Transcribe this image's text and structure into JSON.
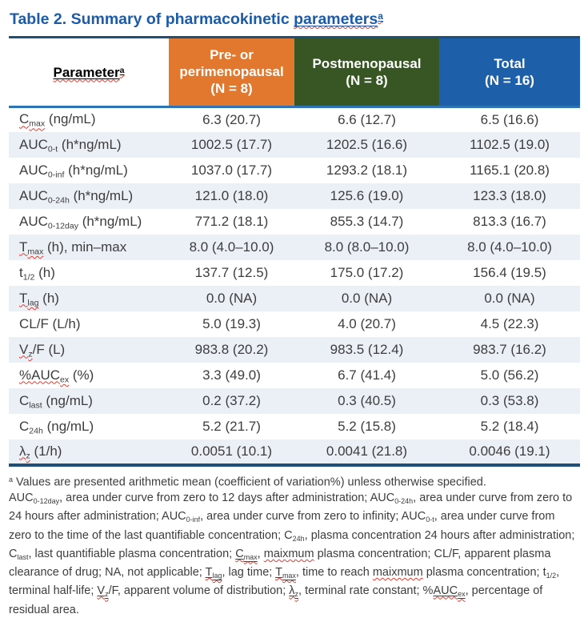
{
  "colors": {
    "title": "#1C5BA8",
    "border_dark": "#1F4E79",
    "border_mid": "#2E74B5",
    "stripe": "#EAF0F6",
    "squiggle": "#E03C31",
    "text": "#3D3D3D"
  },
  "title": {
    "segments": [
      {
        "t": "Table 2. Summary of pharmacokinetic "
      },
      {
        "t": "parameters",
        "u": true,
        "w": true
      },
      {
        "t": "a",
        "sup": true,
        "u": true,
        "w": true
      }
    ]
  },
  "table": {
    "header": {
      "param": [
        {
          "t": "Parameter",
          "u": true,
          "w": true
        },
        {
          "t": "a",
          "sup": true,
          "u": true,
          "w": true
        }
      ],
      "cols": [
        {
          "label": "Pre- or\nperimenopausal\n(N = 8)",
          "color": "#E2772E"
        },
        {
          "label": "Postmenopausal\n(N = 8)",
          "color": "#375623"
        },
        {
          "label": "Total\n(N = 16)",
          "color": "#1E5FA9"
        }
      ]
    },
    "rows": [
      {
        "label": [
          {
            "t": "C",
            "w": true
          },
          {
            "t": "max",
            "sub": true,
            "w": true
          },
          {
            "t": " (ng/mL)"
          }
        ],
        "values": [
          "6.3 (20.7)",
          "6.6 (12.7)",
          "6.5 (16.6)"
        ]
      },
      {
        "label": [
          {
            "t": "AUC"
          },
          {
            "t": "0-t",
            "sub": true
          },
          {
            "t": " (h*ng/mL)"
          }
        ],
        "values": [
          "1002.5 (17.7)",
          "1202.5 (16.6)",
          "1102.5 (19.0)"
        ]
      },
      {
        "label": [
          {
            "t": "AUC"
          },
          {
            "t": "0-inf",
            "sub": true
          },
          {
            "t": " (h*ng/mL)"
          }
        ],
        "values": [
          "1037.0 (17.7)",
          "1293.2 (18.1)",
          "1165.1 (20.8)"
        ]
      },
      {
        "label": [
          {
            "t": "AUC"
          },
          {
            "t": "0-24h",
            "sub": true
          },
          {
            "t": " (h*ng/mL)"
          }
        ],
        "values": [
          "121.0 (18.0)",
          "125.6 (19.0)",
          "123.3 (18.0)"
        ]
      },
      {
        "label": [
          {
            "t": "AUC"
          },
          {
            "t": "0-12day",
            "sub": true
          },
          {
            "t": " (h*ng/mL)"
          }
        ],
        "values": [
          "771.2 (18.1)",
          "855.3 (14.7)",
          "813.3 (16.7)"
        ]
      },
      {
        "label": [
          {
            "t": "T",
            "w": true
          },
          {
            "t": "max",
            "sub": true,
            "w": true
          },
          {
            "t": " (h), min–max"
          }
        ],
        "values": [
          "8.0 (4.0–10.0)",
          "8.0 (8.0–10.0)",
          "8.0 (4.0–10.0)"
        ]
      },
      {
        "label": [
          {
            "t": "t"
          },
          {
            "t": "1/2",
            "sub": true
          },
          {
            "t": " (h)"
          }
        ],
        "values": [
          "137.7 (12.5)",
          "175.0 (17.2)",
          "156.4 (19.5)"
        ]
      },
      {
        "label": [
          {
            "t": "T",
            "w": true
          },
          {
            "t": "lag",
            "sub": true,
            "w": true
          },
          {
            "t": " (h)"
          }
        ],
        "values": [
          "0.0 (NA)",
          "0.0 (NA)",
          "0.0 (NA)"
        ]
      },
      {
        "label": [
          {
            "t": "CL/F (L/h)"
          }
        ],
        "values": [
          "5.0 (19.3)",
          "4.0 (20.7)",
          "4.5 (22.3)"
        ]
      },
      {
        "label": [
          {
            "t": "V",
            "w": true
          },
          {
            "t": "z",
            "sub": true,
            "w": true
          },
          {
            "t": "/F (L)"
          }
        ],
        "values": [
          "983.8 (20.2)",
          "983.5 (12.4)",
          "983.7 (16.2)"
        ]
      },
      {
        "label": [
          {
            "t": "%AUC",
            "w": true
          },
          {
            "t": "ex",
            "sub": true,
            "w": true
          },
          {
            "t": " (%)"
          }
        ],
        "values": [
          "3.3 (49.0)",
          "6.7 (41.4)",
          "5.0 (56.2)"
        ]
      },
      {
        "label": [
          {
            "t": "C"
          },
          {
            "t": "last",
            "sub": true
          },
          {
            "t": " (ng/mL)"
          }
        ],
        "values": [
          "0.2 (37.2)",
          "0.3 (40.5)",
          "0.3 (53.8)"
        ]
      },
      {
        "label": [
          {
            "t": "C"
          },
          {
            "t": "24h",
            "sub": true
          },
          {
            "t": " (ng/mL)"
          }
        ],
        "values": [
          "5.2 (21.7)",
          "5.2 (15.8)",
          "5.2 (18.4)"
        ]
      },
      {
        "label": [
          {
            "t": "λ",
            "w": true
          },
          {
            "t": "z",
            "sub": true,
            "w": true
          },
          {
            "t": " (1/h)"
          }
        ],
        "values": [
          "0.0051 (10.1)",
          "0.0041 (21.8)",
          "0.0046 (19.1)"
        ]
      }
    ]
  },
  "footnote": {
    "segments": [
      {
        "t": "a",
        "sup": true
      },
      {
        "t": " Values are presented arithmetic mean (coefficient of variation%) unless otherwise specified.\n"
      },
      {
        "t": "AUC"
      },
      {
        "t": "0-12day",
        "sub": true
      },
      {
        "t": ", area under curve from zero to 12 days after administration; AUC"
      },
      {
        "t": "0-24h",
        "sub": true
      },
      {
        "t": ", area under curve from zero to 24 hours after administration; AUC"
      },
      {
        "t": "0-inf",
        "sub": true
      },
      {
        "t": ", area under curve from zero to infinity; AUC"
      },
      {
        "t": "0-t",
        "sub": true
      },
      {
        "t": ", area under curve from zero to the time of the last quantifiable concentration; C"
      },
      {
        "t": "24h",
        "sub": true
      },
      {
        "t": ", plasma concentration 24 hours after administration; C"
      },
      {
        "t": "last",
        "sub": true
      },
      {
        "t": ", last quantifiable plasma concentration; "
      },
      {
        "t": "C",
        "w": true,
        "u": true
      },
      {
        "t": "max",
        "sub": true,
        "w": true,
        "u": true
      },
      {
        "t": ", "
      },
      {
        "t": "maixmum",
        "w": true
      },
      {
        "t": " plasma concentration; CL/F, apparent plasma clearance of drug; NA, not applicable; "
      },
      {
        "t": "T",
        "w": true,
        "u": true
      },
      {
        "t": "lag",
        "sub": true,
        "w": true,
        "u": true
      },
      {
        "t": ", lag time; "
      },
      {
        "t": "T",
        "w": true,
        "u": true
      },
      {
        "t": "max",
        "sub": true,
        "w": true,
        "u": true
      },
      {
        "t": ", time to reach "
      },
      {
        "t": "maixmum",
        "w": true
      },
      {
        "t": " plasma concentration; t"
      },
      {
        "t": "1/2",
        "sub": true
      },
      {
        "t": ", terminal half-life; "
      },
      {
        "t": "V",
        "w": true,
        "u": true
      },
      {
        "t": "z",
        "sub": true,
        "w": true,
        "u": true
      },
      {
        "t": "/F, apparent volume of distribution; "
      },
      {
        "t": "λ",
        "w": true,
        "u": true
      },
      {
        "t": "z",
        "sub": true,
        "w": true,
        "u": true
      },
      {
        "t": ", terminal rate constant; %"
      },
      {
        "t": "AUC",
        "w": true,
        "u": true
      },
      {
        "t": "ex",
        "sub": true,
        "w": true,
        "u": true
      },
      {
        "t": ", percentage of residual area."
      }
    ]
  }
}
